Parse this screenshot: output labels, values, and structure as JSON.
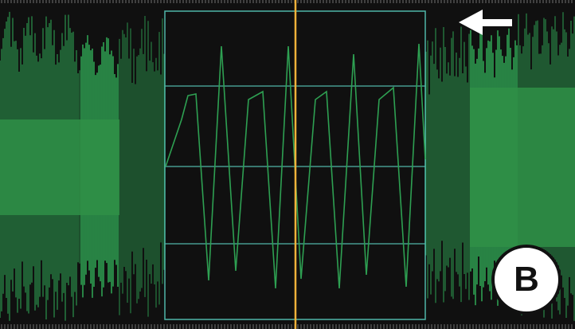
{
  "figure": {
    "panel_label": "B"
  },
  "colors": {
    "background": "#101010",
    "trace": "#2ea052",
    "trace_dense": "#2f8f47",
    "zoom_box": "#4fb5a8",
    "cursor": "#f0b23a",
    "arrow": "#ffffff",
    "ruler": "#9a9a9a"
  },
  "icons": {
    "pointer": "left-arrow-icon"
  }
}
